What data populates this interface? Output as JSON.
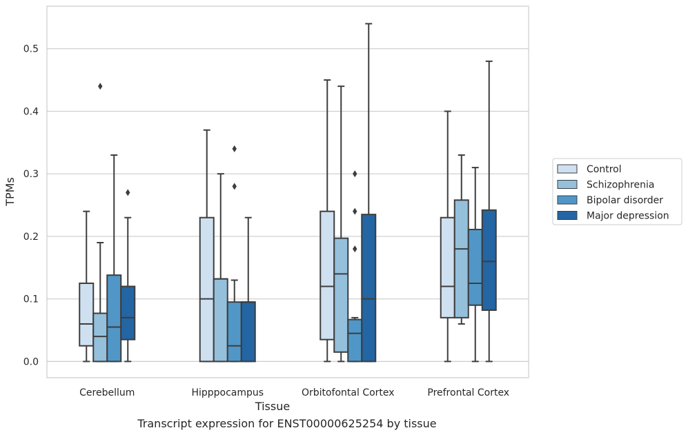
{
  "chart_data": {
    "type": "box",
    "title": "",
    "xlabel": "Tissue",
    "ylabel": "TPMs",
    "ylim": [
      -0.026,
      0.568
    ],
    "yticks": [
      "0.0",
      "0.1",
      "0.2",
      "0.3",
      "0.4",
      "0.5"
    ],
    "ytick_values": [
      0,
      0.1,
      0.2,
      0.3,
      0.4,
      0.5
    ],
    "grid": "horizontal",
    "legend_position": "right",
    "categories": [
      "Cerebellum",
      "Hipppocampus",
      "Orbitofontal Cortex",
      "Prefrontal Cortex"
    ],
    "series": [
      {
        "name": "Control",
        "color": "#cfe0f0",
        "boxes": [
          {
            "whislo": 0,
            "q1": 0.025,
            "med": 0.06,
            "q3": 0.125,
            "whishi": 0.24,
            "fliers": []
          },
          {
            "whislo": 0,
            "q1": 0,
            "med": 0.1,
            "q3": 0.23,
            "whishi": 0.37,
            "fliers": []
          },
          {
            "whislo": 0,
            "q1": 0.035,
            "med": 0.12,
            "q3": 0.24,
            "whishi": 0.45,
            "fliers": []
          },
          {
            "whislo": 0,
            "q1": 0.07,
            "med": 0.12,
            "q3": 0.23,
            "whishi": 0.4,
            "fliers": []
          }
        ]
      },
      {
        "name": "Schizophrenia",
        "color": "#94c0dc",
        "boxes": [
          {
            "whislo": 0,
            "q1": 0,
            "med": 0.04,
            "q3": 0.077,
            "whishi": 0.19,
            "fliers": [
              0.44
            ]
          },
          {
            "whislo": 0,
            "q1": 0,
            "med": 0.132,
            "q3": 0.132,
            "whishi": 0.3,
            "fliers": []
          },
          {
            "whislo": 0,
            "q1": 0.015,
            "med": 0.14,
            "q3": 0.197,
            "whishi": 0.44,
            "fliers": []
          },
          {
            "whislo": 0.06,
            "q1": 0.07,
            "med": 0.18,
            "q3": 0.258,
            "whishi": 0.33,
            "fliers": []
          }
        ]
      },
      {
        "name": "Bipolar disorder",
        "color": "#5097c7",
        "boxes": [
          {
            "whislo": 0,
            "q1": 0,
            "med": 0.055,
            "q3": 0.138,
            "whishi": 0.33,
            "fliers": []
          },
          {
            "whislo": 0,
            "q1": 0,
            "med": 0.025,
            "q3": 0.095,
            "whishi": 0.13,
            "fliers": [
              0.28,
              0.34
            ]
          },
          {
            "whislo": 0,
            "q1": 0,
            "med": 0.045,
            "q3": 0.067,
            "whishi": 0.07,
            "fliers": [
              0.18,
              0.24,
              0.3
            ]
          },
          {
            "whislo": 0,
            "q1": 0.09,
            "med": 0.125,
            "q3": 0.211,
            "whishi": 0.31,
            "fliers": []
          }
        ]
      },
      {
        "name": "Major depression",
        "color": "#2465a3",
        "boxes": [
          {
            "whislo": 0,
            "q1": 0.035,
            "med": 0.07,
            "q3": 0.12,
            "whishi": 0.23,
            "fliers": [
              0.27
            ]
          },
          {
            "whislo": 0,
            "q1": 0,
            "med": 0.095,
            "q3": 0.095,
            "whishi": 0.23,
            "fliers": []
          },
          {
            "whislo": 0,
            "q1": 0,
            "med": 0.1,
            "q3": 0.235,
            "whishi": 0.54,
            "fliers": []
          },
          {
            "whislo": 0,
            "q1": 0.082,
            "med": 0.16,
            "q3": 0.242,
            "whishi": 0.48,
            "fliers": []
          }
        ]
      }
    ]
  },
  "figure": {
    "caption": "Transcript expression for ENST00000625254 by tissue"
  }
}
